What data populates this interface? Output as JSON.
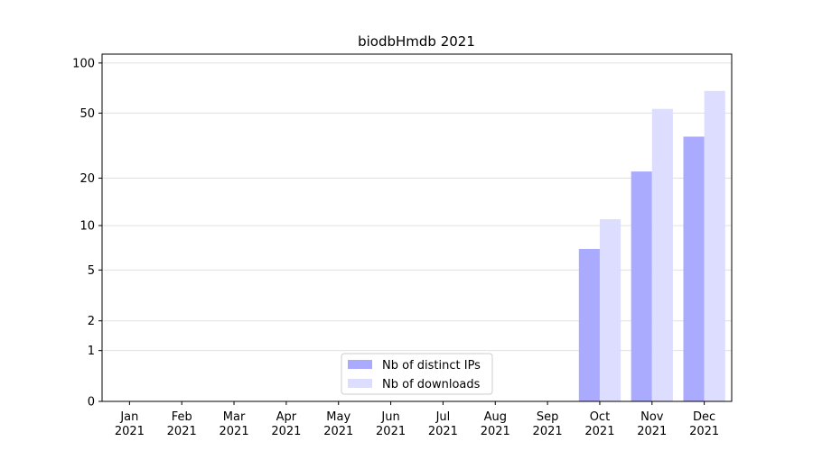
{
  "chart_data": {
    "type": "bar",
    "title": "biodbHmdb 2021",
    "categories": [
      [
        "Jan",
        "2021"
      ],
      [
        "Feb",
        "2021"
      ],
      [
        "Mar",
        "2021"
      ],
      [
        "Apr",
        "2021"
      ],
      [
        "May",
        "2021"
      ],
      [
        "Jun",
        "2021"
      ],
      [
        "Jul",
        "2021"
      ],
      [
        "Aug",
        "2021"
      ],
      [
        "Sep",
        "2021"
      ],
      [
        "Oct",
        "2021"
      ],
      [
        "Nov",
        "2021"
      ],
      [
        "Dec",
        "2021"
      ]
    ],
    "series": [
      {
        "name": "Nb of distinct IPs",
        "color": "#aaaaff",
        "values": [
          0,
          0,
          0,
          0,
          0,
          0,
          0,
          0,
          0,
          7,
          22,
          36
        ]
      },
      {
        "name": "Nb of downloads",
        "color": "#ddddff",
        "values": [
          0,
          0,
          0,
          0,
          0,
          0,
          0,
          0,
          0,
          11,
          53,
          68
        ]
      }
    ],
    "yscale": "log1p",
    "ylim": [
      0,
      113
    ],
    "yticks": [
      0,
      1,
      2,
      5,
      10,
      20,
      50,
      100
    ],
    "grid": true,
    "legend": "lower center"
  }
}
